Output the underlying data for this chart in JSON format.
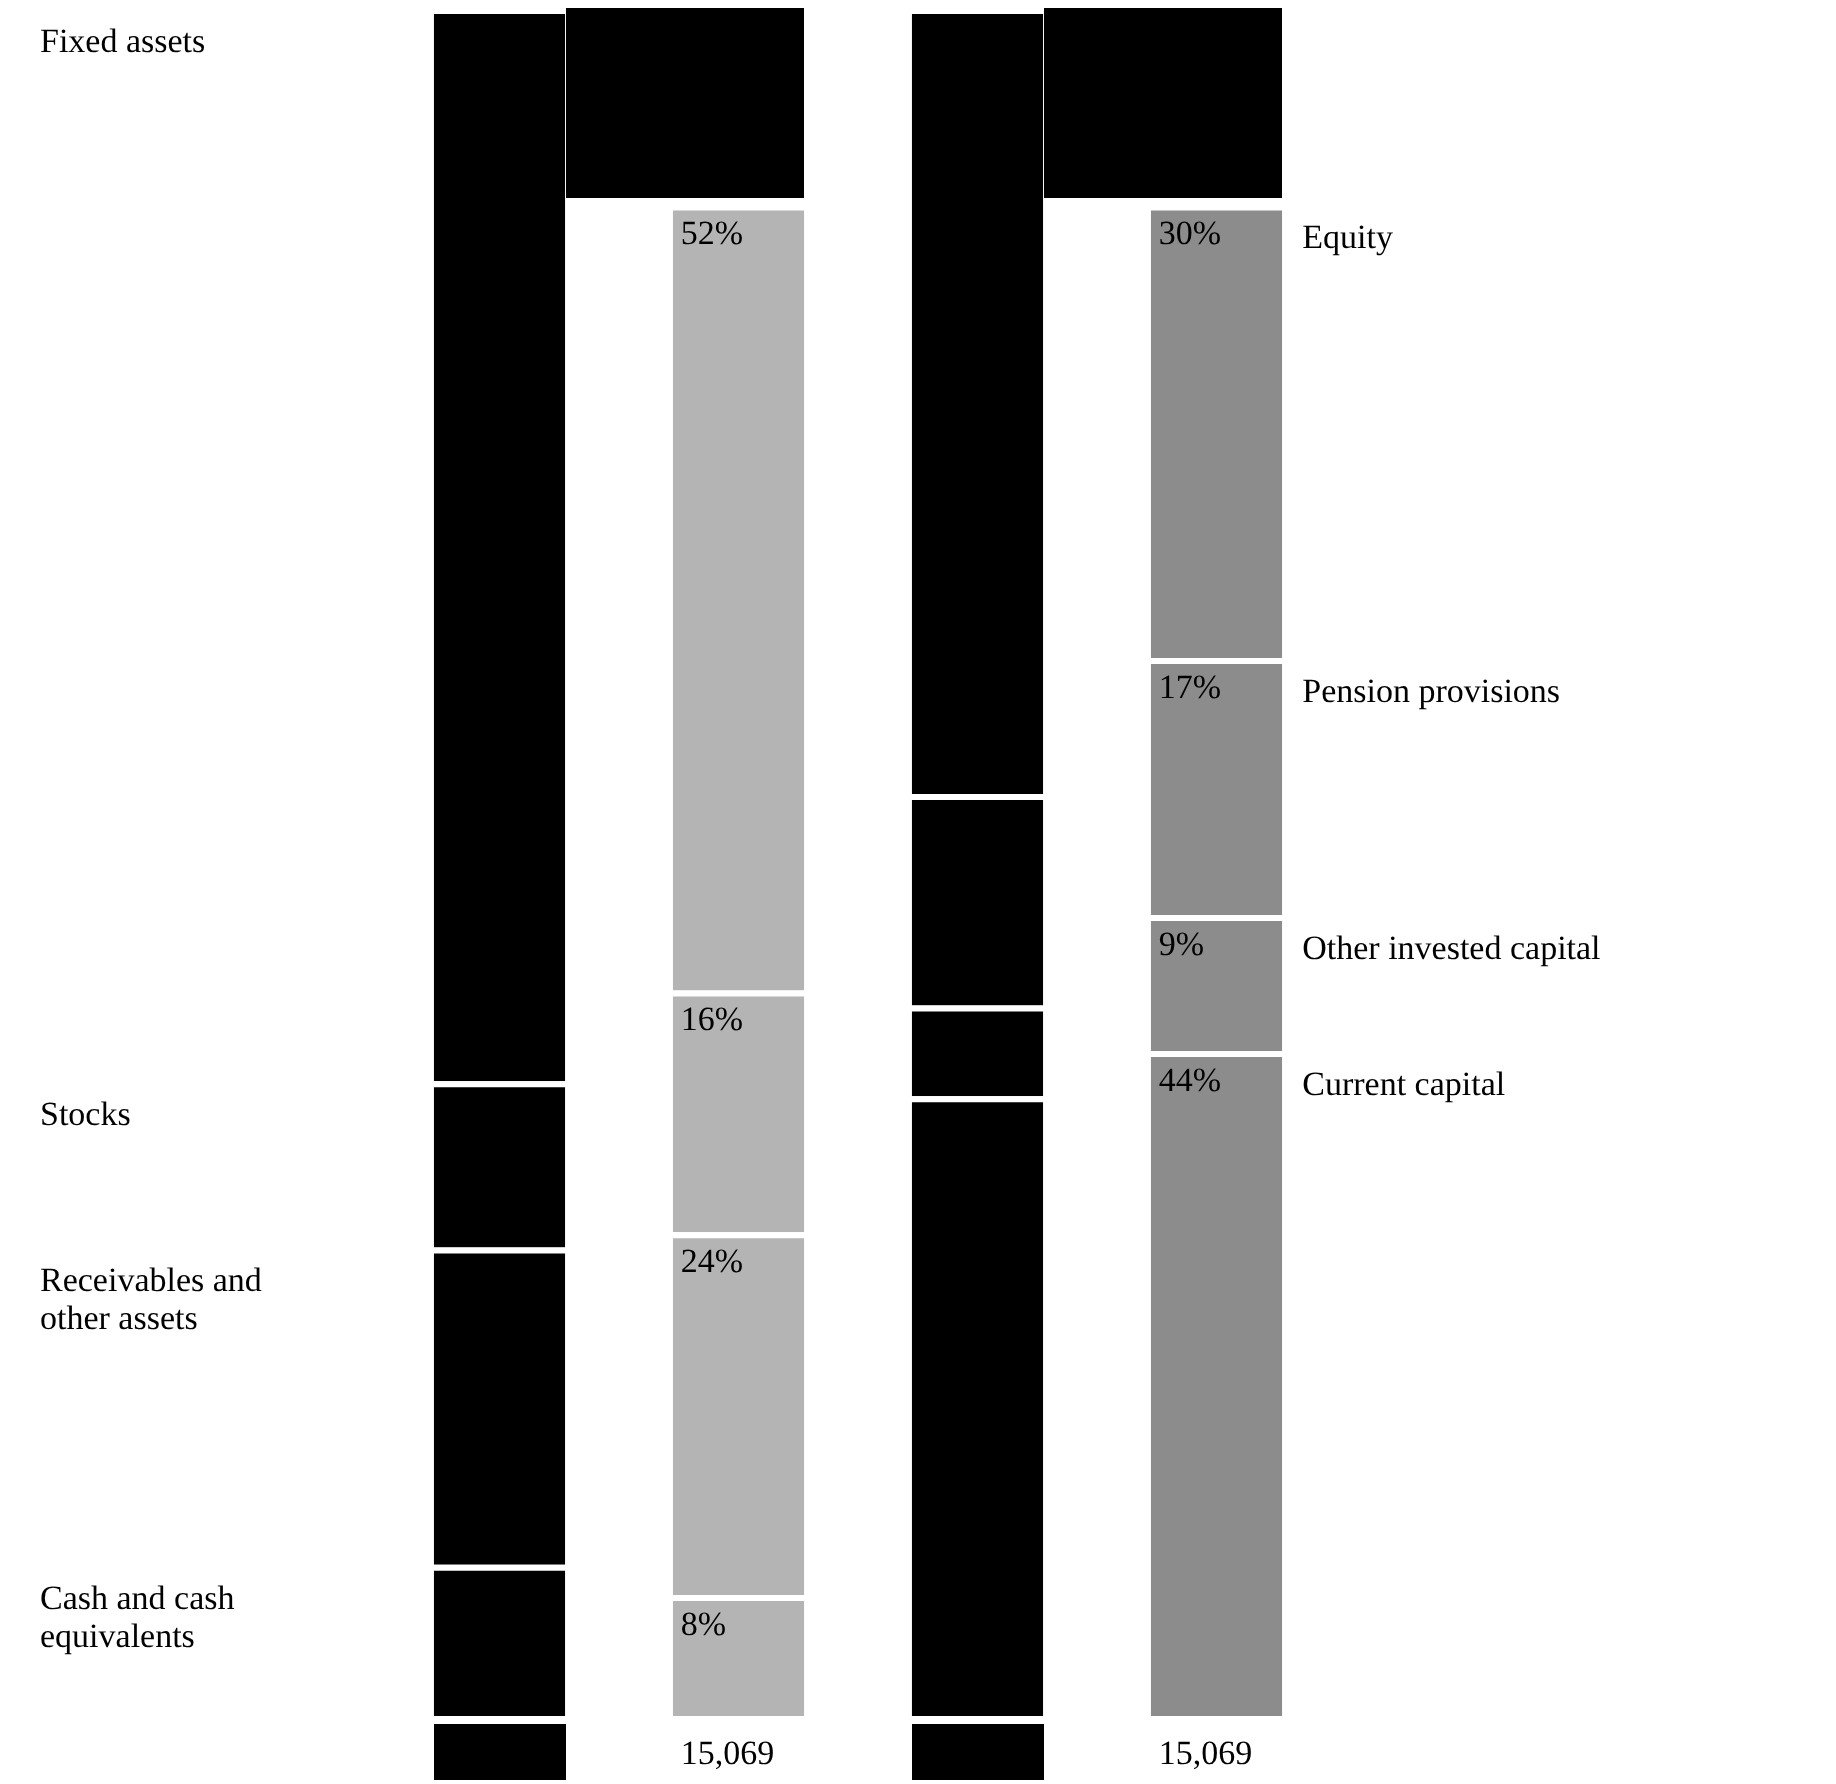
{
  "chart_data": {
    "type": "bar",
    "stacked": true,
    "legend": false,
    "categories": [
      null,
      null,
      null,
      null
    ],
    "series": [
      {
        "colors": [
          "#000000",
          "#b4b4b4",
          "#000000",
          "#8c8c8c"
        ],
        "values": [
          10,
          8,
          41,
          44
        ],
        "value_labels": [
          null,
          "8%",
          null,
          "44%"
        ]
      },
      {
        "colors": [
          "#000000",
          "#b4b4b4",
          "#000000",
          "#8c8c8c"
        ],
        "values": [
          21,
          24,
          6,
          9
        ],
        "value_labels": [
          null,
          "24%",
          null,
          "9%"
        ]
      },
      {
        "colors": [
          "#000000",
          "#b4b4b4",
          "#000000",
          "#8c8c8c"
        ],
        "values": [
          11,
          16,
          14,
          17
        ],
        "value_labels": [
          null,
          "16%",
          null,
          "17%"
        ]
      },
      {
        "colors": [
          "#000000",
          "#b4b4b4",
          "#000000",
          "#8c8c8c"
        ],
        "values": [
          71,
          52,
          52,
          30
        ],
        "value_labels": [
          null,
          "52%",
          null,
          "30%"
        ]
      }
    ],
    "annotations": [
      "Fixed assets",
      "Stocks",
      "Receivables and other assets",
      "Cash and cash equivalents",
      "Equity",
      "Pension provisions",
      "Other invested capital",
      "Current capital",
      "15,069",
      "15,069"
    ]
  }
}
